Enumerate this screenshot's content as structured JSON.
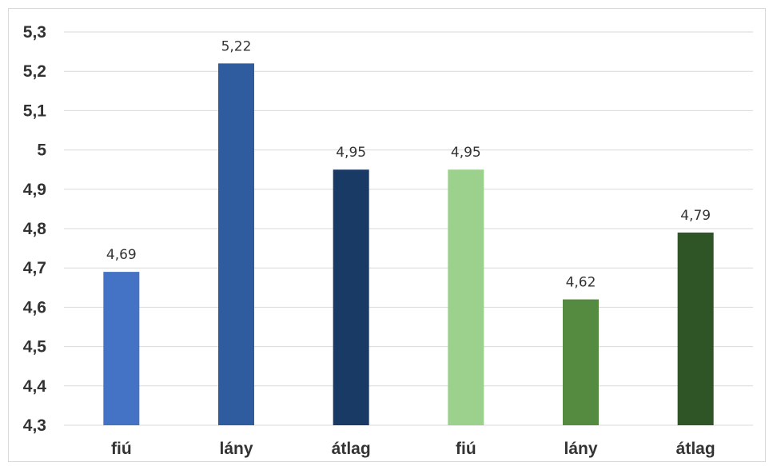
{
  "chart_data": {
    "type": "bar",
    "title": "",
    "xlabel": "",
    "ylabel": "",
    "categories": [
      "fiú",
      "lány",
      "átlag",
      "fiú",
      "lány",
      "átlag"
    ],
    "values": [
      4.69,
      5.22,
      4.95,
      4.95,
      4.62,
      4.79
    ],
    "value_labels": [
      "4,69",
      "5,22",
      "4,95",
      "4,95",
      "4,62",
      "4,79"
    ],
    "bar_colors": [
      "#4472c4",
      "#2e5c9e",
      "#1a3a66",
      "#9bd18c",
      "#548b40",
      "#2f5425"
    ],
    "ylim": [
      4.3,
      5.3
    ],
    "y_ticks": [
      4.3,
      4.4,
      4.5,
      4.6,
      4.7,
      4.8,
      4.9,
      5.0,
      5.1,
      5.2,
      5.3
    ],
    "y_tick_labels": [
      "4,3",
      "4,4",
      "4,5",
      "4,6",
      "4,7",
      "4,8",
      "4,9",
      "5",
      "5,1",
      "5,2",
      "5,3"
    ],
    "grid": true,
    "legend": "none"
  }
}
